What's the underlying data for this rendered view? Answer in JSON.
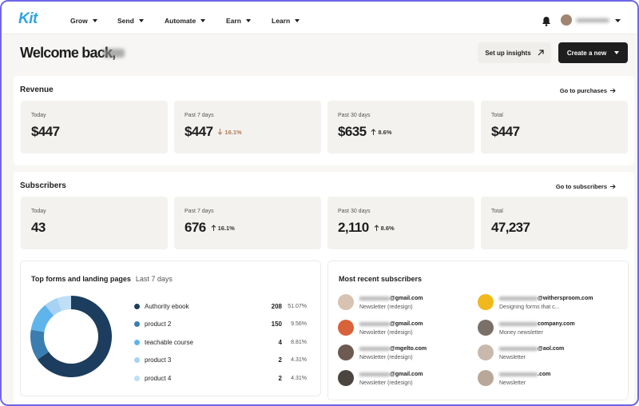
{
  "nav": {
    "logo": "Kit",
    "menu": [
      "Grow",
      "Send",
      "Automate",
      "Earn",
      "Learn"
    ]
  },
  "header": {
    "title": "Welcome back,",
    "buttons": [
      "Set up insights",
      "Create a new"
    ]
  },
  "revenue": {
    "title": "Revenue",
    "link": "Go to purchases",
    "cards": [
      {
        "label": "Today",
        "value": "$447"
      },
      {
        "label": "Past 7 days",
        "value": "$447",
        "change": "16.1%",
        "direction": "down"
      },
      {
        "label": "Past 30 days",
        "value": "$635",
        "change": "8.6%",
        "direction": "up"
      },
      {
        "label": "Total",
        "value": "$447"
      }
    ]
  },
  "subscribers": {
    "title": "Subscribers",
    "link": "Go to subscribers",
    "cards": [
      {
        "label": "Today",
        "value": "43"
      },
      {
        "label": "Past 7 days",
        "value": "676",
        "change": "16.1%",
        "direction": "up"
      },
      {
        "label": "Past 30 days",
        "value": "2,110",
        "change": "8.6%",
        "direction": "up"
      },
      {
        "label": "Total",
        "value": "47,237"
      }
    ]
  },
  "forms": {
    "title": "Top forms and landing pages",
    "period": "Last 7 days",
    "chart": {
      "type": "donut",
      "categories": [
        "Authority ebook",
        "product 2",
        "teachable course",
        "product 3",
        "product 4"
      ],
      "counts": [
        208,
        150,
        4,
        2,
        2
      ],
      "values": [
        51.07,
        9.56,
        8.81,
        4.31,
        4.31
      ],
      "value_labels": [
        "51.07%",
        "9.56%",
        "8.81%",
        "4.31%",
        "4.31%"
      ],
      "colors": [
        "#1c3d5e",
        "#3a7db0",
        "#5fb4ec",
        "#a7d2f3",
        "#bfdff7"
      ]
    }
  },
  "recent": {
    "title": "Most recent subscribers",
    "entries": [
      {
        "email": "@gmail.com",
        "form": "Newsletter (redesign)"
      },
      {
        "email": "@gmail.com",
        "form": "Newsletter (redesign)"
      },
      {
        "email": "@mgelto.com",
        "form": "Newsletter (redesign)"
      },
      {
        "email": "@gmail.com",
        "form": "Newsletter (redesign)"
      },
      {
        "email": "@withersproom.com",
        "form": "Designing forms that c..."
      },
      {
        "email": "company.com",
        "form": "Money newsletter"
      },
      {
        "email": "@aol.com",
        "form": "Newsletter"
      },
      {
        "email": ".com",
        "form": "Newsletter"
      }
    ]
  }
}
